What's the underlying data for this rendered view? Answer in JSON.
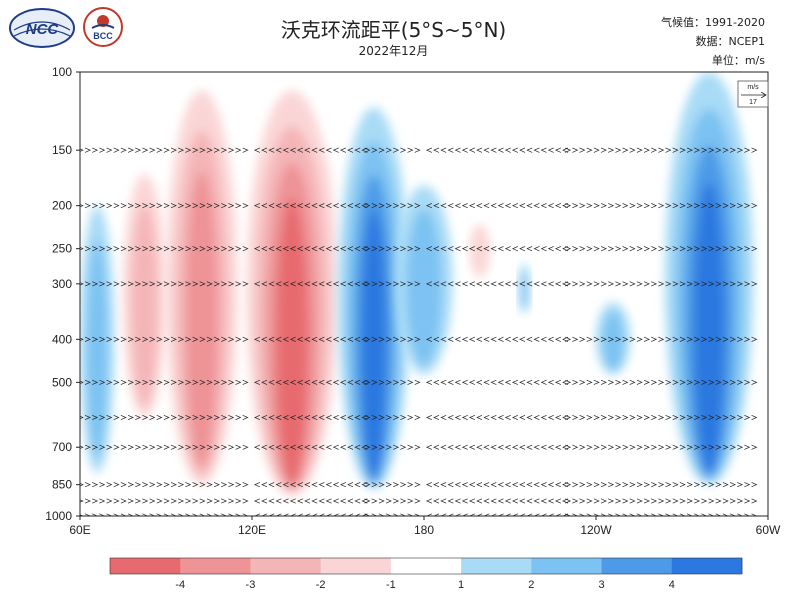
{
  "header": {
    "title": "沃克环流距平(5°S~5°N)",
    "subtitle": "2022年12月",
    "climatology": "气候值：1991-2020",
    "source": "数据：NCEP1",
    "unit": "单位：m/s",
    "logo_ncc": "NCC",
    "logo_bcc": "BCC"
  },
  "chart_data": {
    "type": "heatmap",
    "title": "沃克环流距平(5°S~5°N)",
    "subtitle": "2022年12月",
    "xlabel": "",
    "ylabel": "",
    "x_ticks": [
      "60E",
      "120E",
      "180",
      "120W",
      "60W"
    ],
    "x_tick_values": [
      60,
      120,
      180,
      240,
      300
    ],
    "xlim": [
      60,
      300
    ],
    "y_ticks": [
      "100",
      "150",
      "200",
      "250",
      "300",
      "400",
      "500",
      "700",
      "850",
      "1000"
    ],
    "y_tick_values": [
      100,
      150,
      200,
      250,
      300,
      400,
      500,
      700,
      850,
      1000
    ],
    "ylim": [
      1000,
      100
    ],
    "y_scale": "log-pressure",
    "vector_levels": [
      150,
      200,
      250,
      300,
      400,
      500,
      600,
      700,
      850,
      925,
      1000
    ],
    "reference_vector": {
      "unit": "m/s",
      "value": "17"
    },
    "colorbar": {
      "ticks": [
        "-4",
        "-3",
        "-2",
        "-1",
        "1",
        "2",
        "3",
        "4"
      ],
      "colors": [
        "#e76b6e",
        "#ee9396",
        "#f4b5b7",
        "#fbd5d6",
        "#ffffff",
        "#a9dbf6",
        "#7cc2f2",
        "#4d9be8",
        "#2b78e0"
      ]
    },
    "anomaly_regions": [
      {
        "sign": "negative",
        "lon": [
          75,
          90
        ],
        "p": [
          170,
          600
        ],
        "peak": -1.5
      },
      {
        "sign": "negative",
        "lon": [
          90,
          115
        ],
        "p": [
          110,
          850
        ],
        "peak": -2.5
      },
      {
        "sign": "negative",
        "lon": [
          118,
          150
        ],
        "p": [
          110,
          900
        ],
        "peak": -4.0
      },
      {
        "sign": "positive",
        "lon": [
          150,
          175
        ],
        "p": [
          120,
          870
        ],
        "peak": 3.5
      },
      {
        "sign": "positive",
        "lon": [
          170,
          190
        ],
        "p": [
          180,
          480
        ],
        "peak": 2.0
      },
      {
        "sign": "positive",
        "lon": [
          60,
          72
        ],
        "p": [
          200,
          800
        ],
        "peak": 2.0
      },
      {
        "sign": "positive",
        "lon": [
          264,
          295
        ],
        "p": [
          100,
          850
        ],
        "peak": 4.0
      },
      {
        "sign": "positive",
        "lon": [
          213,
          217
        ],
        "p": [
          270,
          350
        ],
        "peak": 1.5
      },
      {
        "sign": "positive",
        "lon": [
          240,
          252
        ],
        "p": [
          330,
          480
        ],
        "peak": 1.5
      },
      {
        "sign": "negative",
        "lon": [
          196,
          203
        ],
        "p": [
          220,
          290
        ],
        "peak": -1.2
      }
    ]
  }
}
